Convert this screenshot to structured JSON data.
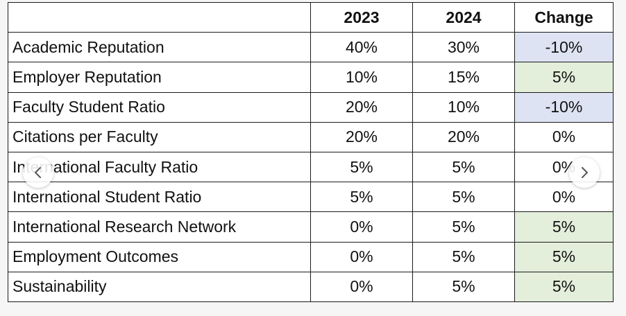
{
  "table": {
    "headers": [
      "",
      "2023",
      "2024",
      "Change"
    ],
    "rows": [
      {
        "indicator": "Academic Reputation",
        "y2023": "40%",
        "y2024": "30%",
        "change": "-10%",
        "change_color": "#dde3f2"
      },
      {
        "indicator": "Employer Reputation",
        "y2023": "10%",
        "y2024": "15%",
        "change": "5%",
        "change_color": "#e3eedb"
      },
      {
        "indicator": "Faculty Student Ratio",
        "y2023": "20%",
        "y2024": "10%",
        "change": "-10%",
        "change_color": "#dde3f2"
      },
      {
        "indicator": "Citations per Faculty",
        "y2023": "20%",
        "y2024": "20%",
        "change": "0%",
        "change_color": "#ffffff"
      },
      {
        "indicator": "International Faculty Ratio",
        "y2023": "5%",
        "y2024": "5%",
        "change": "0%",
        "change_color": "#ffffff"
      },
      {
        "indicator": "International Student Ratio",
        "y2023": "5%",
        "y2024": "5%",
        "change": "0%",
        "change_color": "#ffffff"
      },
      {
        "indicator": "International Research Network",
        "y2023": "0%",
        "y2024": "5%",
        "change": "5%",
        "change_color": "#e3eedb"
      },
      {
        "indicator": "Employment Outcomes",
        "y2023": "0%",
        "y2024": "5%",
        "change": "5%",
        "change_color": "#e3eedb"
      },
      {
        "indicator": "Sustainability",
        "y2023": "0%",
        "y2024": "5%",
        "change": "5%",
        "change_color": "#e3eedb"
      }
    ]
  },
  "carousel": {
    "prev_icon": "chevron-left-icon",
    "next_icon": "chevron-right-icon"
  },
  "colors": {
    "decrease": "#dde3f2",
    "increase": "#e3eedb",
    "border": "#1a1a1a"
  }
}
